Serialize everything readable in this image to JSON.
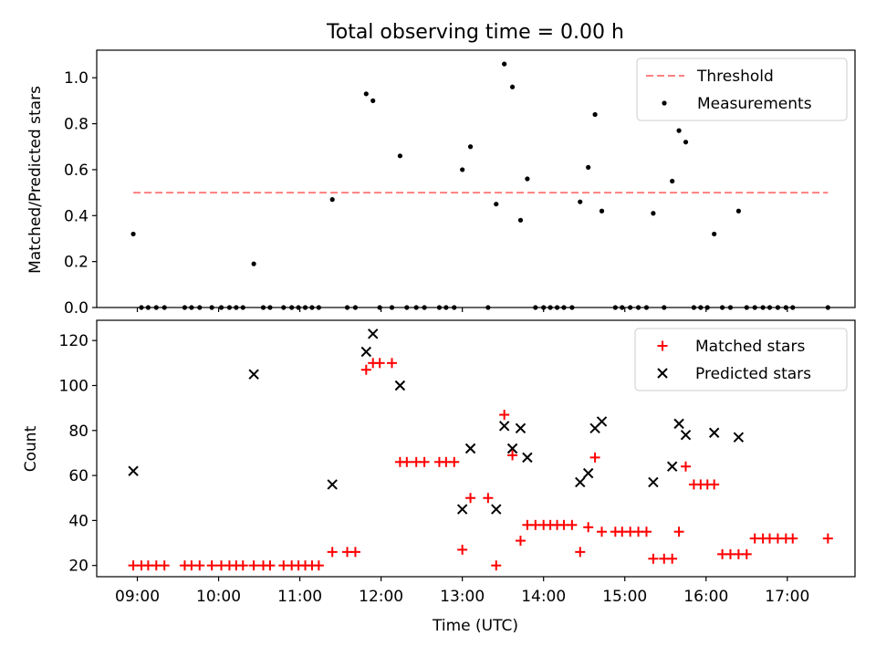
{
  "chart_data": [
    {
      "type": "scatter",
      "title": "Total observing time = 0.00 h",
      "ylabel": "Matched/Predicted stars",
      "xlim": [
        "08:30",
        "17:50"
      ],
      "ylim": [
        0,
        1.12
      ],
      "yticks": [
        0.0,
        0.2,
        0.4,
        0.6,
        0.8,
        1.0
      ],
      "ytick_labels": [
        "0.0",
        "0.2",
        "0.4",
        "0.6",
        "0.8",
        "1.0"
      ],
      "legend": {
        "placement": "top-right"
      },
      "series": [
        {
          "name": "Threshold",
          "style": "dashed-line",
          "color": "#ff7f7f",
          "points": [
            [
              "08:57",
              0.5
            ],
            [
              "17:30",
              0.5
            ]
          ]
        },
        {
          "name": "Measurements",
          "style": "dot",
          "color": "#000000",
          "points": [
            [
              "08:57",
              0.32
            ],
            [
              "09:03",
              0
            ],
            [
              "09:08",
              0
            ],
            [
              "09:14",
              0
            ],
            [
              "09:20",
              0
            ],
            [
              "09:35",
              0
            ],
            [
              "09:40",
              0
            ],
            [
              "09:46",
              0
            ],
            [
              "09:55",
              0
            ],
            [
              "10:02",
              0
            ],
            [
              "10:08",
              0
            ],
            [
              "10:13",
              0
            ],
            [
              "10:18",
              0
            ],
            [
              "10:26",
              0.19
            ],
            [
              "10:33",
              0
            ],
            [
              "10:38",
              0
            ],
            [
              "10:48",
              0
            ],
            [
              "10:54",
              0
            ],
            [
              "10:59",
              0
            ],
            [
              "11:04",
              0
            ],
            [
              "11:09",
              0
            ],
            [
              "11:14",
              0
            ],
            [
              "11:24",
              0.47
            ],
            [
              "11:35",
              0
            ],
            [
              "11:41",
              0
            ],
            [
              "11:49",
              0.93
            ],
            [
              "11:54",
              0.9
            ],
            [
              "11:59",
              0
            ],
            [
              "12:08",
              0
            ],
            [
              "12:14",
              0.66
            ],
            [
              "12:19",
              0
            ],
            [
              "12:26",
              0
            ],
            [
              "12:32",
              0
            ],
            [
              "12:43",
              0
            ],
            [
              "12:48",
              0
            ],
            [
              "12:54",
              0
            ],
            [
              "13:00",
              0.6
            ],
            [
              "13:06",
              0.7
            ],
            [
              "13:19",
              0
            ],
            [
              "13:25",
              0.45
            ],
            [
              "13:31",
              1.06
            ],
            [
              "13:37",
              0.96
            ],
            [
              "13:43",
              0.38
            ],
            [
              "13:48",
              0.56
            ],
            [
              "13:54",
              0
            ],
            [
              "14:00",
              0
            ],
            [
              "14:05",
              0
            ],
            [
              "14:10",
              0
            ],
            [
              "14:15",
              0
            ],
            [
              "14:21",
              0
            ],
            [
              "14:27",
              0.46
            ],
            [
              "14:33",
              0.61
            ],
            [
              "14:38",
              0.84
            ],
            [
              "14:43",
              0.42
            ],
            [
              "14:53",
              0
            ],
            [
              "14:58",
              0
            ],
            [
              "15:04",
              0
            ],
            [
              "15:10",
              0
            ],
            [
              "15:16",
              0
            ],
            [
              "15:21",
              0.41
            ],
            [
              "15:29",
              0
            ],
            [
              "15:35",
              0.55
            ],
            [
              "15:40",
              0.77
            ],
            [
              "15:45",
              0.72
            ],
            [
              "15:51",
              0
            ],
            [
              "15:56",
              0
            ],
            [
              "16:01",
              0
            ],
            [
              "16:06",
              0.32
            ],
            [
              "16:12",
              0
            ],
            [
              "16:18",
              0
            ],
            [
              "16:24",
              0.42
            ],
            [
              "16:30",
              0
            ],
            [
              "16:36",
              0
            ],
            [
              "16:42",
              0
            ],
            [
              "16:47",
              0
            ],
            [
              "16:53",
              0
            ],
            [
              "16:59",
              0
            ],
            [
              "17:04",
              0
            ],
            [
              "17:30",
              0
            ]
          ]
        }
      ]
    },
    {
      "type": "scatter",
      "xlabel": "Time (UTC)",
      "ylabel": "Count",
      "xlim": [
        "08:30",
        "17:50"
      ],
      "ylim": [
        15,
        129
      ],
      "xticks": [
        "09:00",
        "10:00",
        "11:00",
        "12:00",
        "13:00",
        "14:00",
        "15:00",
        "16:00",
        "17:00"
      ],
      "yticks": [
        20,
        40,
        60,
        80,
        100,
        120
      ],
      "ytick_labels": [
        "20",
        "40",
        "60",
        "80",
        "100",
        "120"
      ],
      "legend": {
        "placement": "top-right"
      },
      "series": [
        {
          "name": "Matched stars",
          "marker": "plus",
          "color": "#ff0000",
          "points": [
            [
              "08:57",
              20
            ],
            [
              "09:03",
              20
            ],
            [
              "09:08",
              20
            ],
            [
              "09:14",
              20
            ],
            [
              "09:20",
              20
            ],
            [
              "09:35",
              20
            ],
            [
              "09:40",
              20
            ],
            [
              "09:46",
              20
            ],
            [
              "09:55",
              20
            ],
            [
              "10:02",
              20
            ],
            [
              "10:08",
              20
            ],
            [
              "10:13",
              20
            ],
            [
              "10:18",
              20
            ],
            [
              "10:26",
              20
            ],
            [
              "10:33",
              20
            ],
            [
              "10:38",
              20
            ],
            [
              "10:48",
              20
            ],
            [
              "10:54",
              20
            ],
            [
              "10:59",
              20
            ],
            [
              "11:04",
              20
            ],
            [
              "11:09",
              20
            ],
            [
              "11:14",
              20
            ],
            [
              "11:24",
              26
            ],
            [
              "11:35",
              26
            ],
            [
              "11:41",
              26
            ],
            [
              "11:49",
              107
            ],
            [
              "11:54",
              110
            ],
            [
              "11:59",
              110
            ],
            [
              "12:08",
              110
            ],
            [
              "12:14",
              66
            ],
            [
              "12:19",
              66
            ],
            [
              "12:26",
              66
            ],
            [
              "12:32",
              66
            ],
            [
              "12:43",
              66
            ],
            [
              "12:48",
              66
            ],
            [
              "12:54",
              66
            ],
            [
              "13:00",
              27
            ],
            [
              "13:06",
              50
            ],
            [
              "13:19",
              50
            ],
            [
              "13:25",
              20
            ],
            [
              "13:31",
              87
            ],
            [
              "13:37",
              69
            ],
            [
              "13:43",
              31
            ],
            [
              "13:48",
              38
            ],
            [
              "13:54",
              38
            ],
            [
              "14:00",
              38
            ],
            [
              "14:05",
              38
            ],
            [
              "14:10",
              38
            ],
            [
              "14:15",
              38
            ],
            [
              "14:21",
              38
            ],
            [
              "14:27",
              26
            ],
            [
              "14:33",
              37
            ],
            [
              "14:38",
              68
            ],
            [
              "14:43",
              35
            ],
            [
              "14:53",
              35
            ],
            [
              "14:58",
              35
            ],
            [
              "15:04",
              35
            ],
            [
              "15:10",
              35
            ],
            [
              "15:16",
              35
            ],
            [
              "15:21",
              23
            ],
            [
              "15:29",
              23
            ],
            [
              "15:35",
              23
            ],
            [
              "15:40",
              35
            ],
            [
              "15:45",
              64
            ],
            [
              "15:51",
              56
            ],
            [
              "15:56",
              56
            ],
            [
              "16:01",
              56
            ],
            [
              "16:06",
              56
            ],
            [
              "16:12",
              25
            ],
            [
              "16:18",
              25
            ],
            [
              "16:24",
              25
            ],
            [
              "16:30",
              25
            ],
            [
              "16:36",
              32
            ],
            [
              "16:42",
              32
            ],
            [
              "16:47",
              32
            ],
            [
              "16:53",
              32
            ],
            [
              "16:59",
              32
            ],
            [
              "17:04",
              32
            ],
            [
              "17:30",
              32
            ]
          ]
        },
        {
          "name": "Predicted stars",
          "marker": "x",
          "color": "#000000",
          "points": [
            [
              "08:57",
              62
            ],
            [
              "10:26",
              105
            ],
            [
              "11:24",
              56
            ],
            [
              "11:49",
              115
            ],
            [
              "11:54",
              123
            ],
            [
              "12:14",
              100
            ],
            [
              "13:00",
              45
            ],
            [
              "13:06",
              72
            ],
            [
              "13:25",
              45
            ],
            [
              "13:31",
              82
            ],
            [
              "13:37",
              72
            ],
            [
              "13:43",
              81
            ],
            [
              "13:48",
              68
            ],
            [
              "14:27",
              57
            ],
            [
              "14:33",
              61
            ],
            [
              "14:38",
              81
            ],
            [
              "14:43",
              84
            ],
            [
              "15:21",
              57
            ],
            [
              "15:35",
              64
            ],
            [
              "15:40",
              83
            ],
            [
              "15:45",
              78
            ],
            [
              "16:06",
              79
            ],
            [
              "16:24",
              77
            ]
          ]
        }
      ]
    }
  ]
}
